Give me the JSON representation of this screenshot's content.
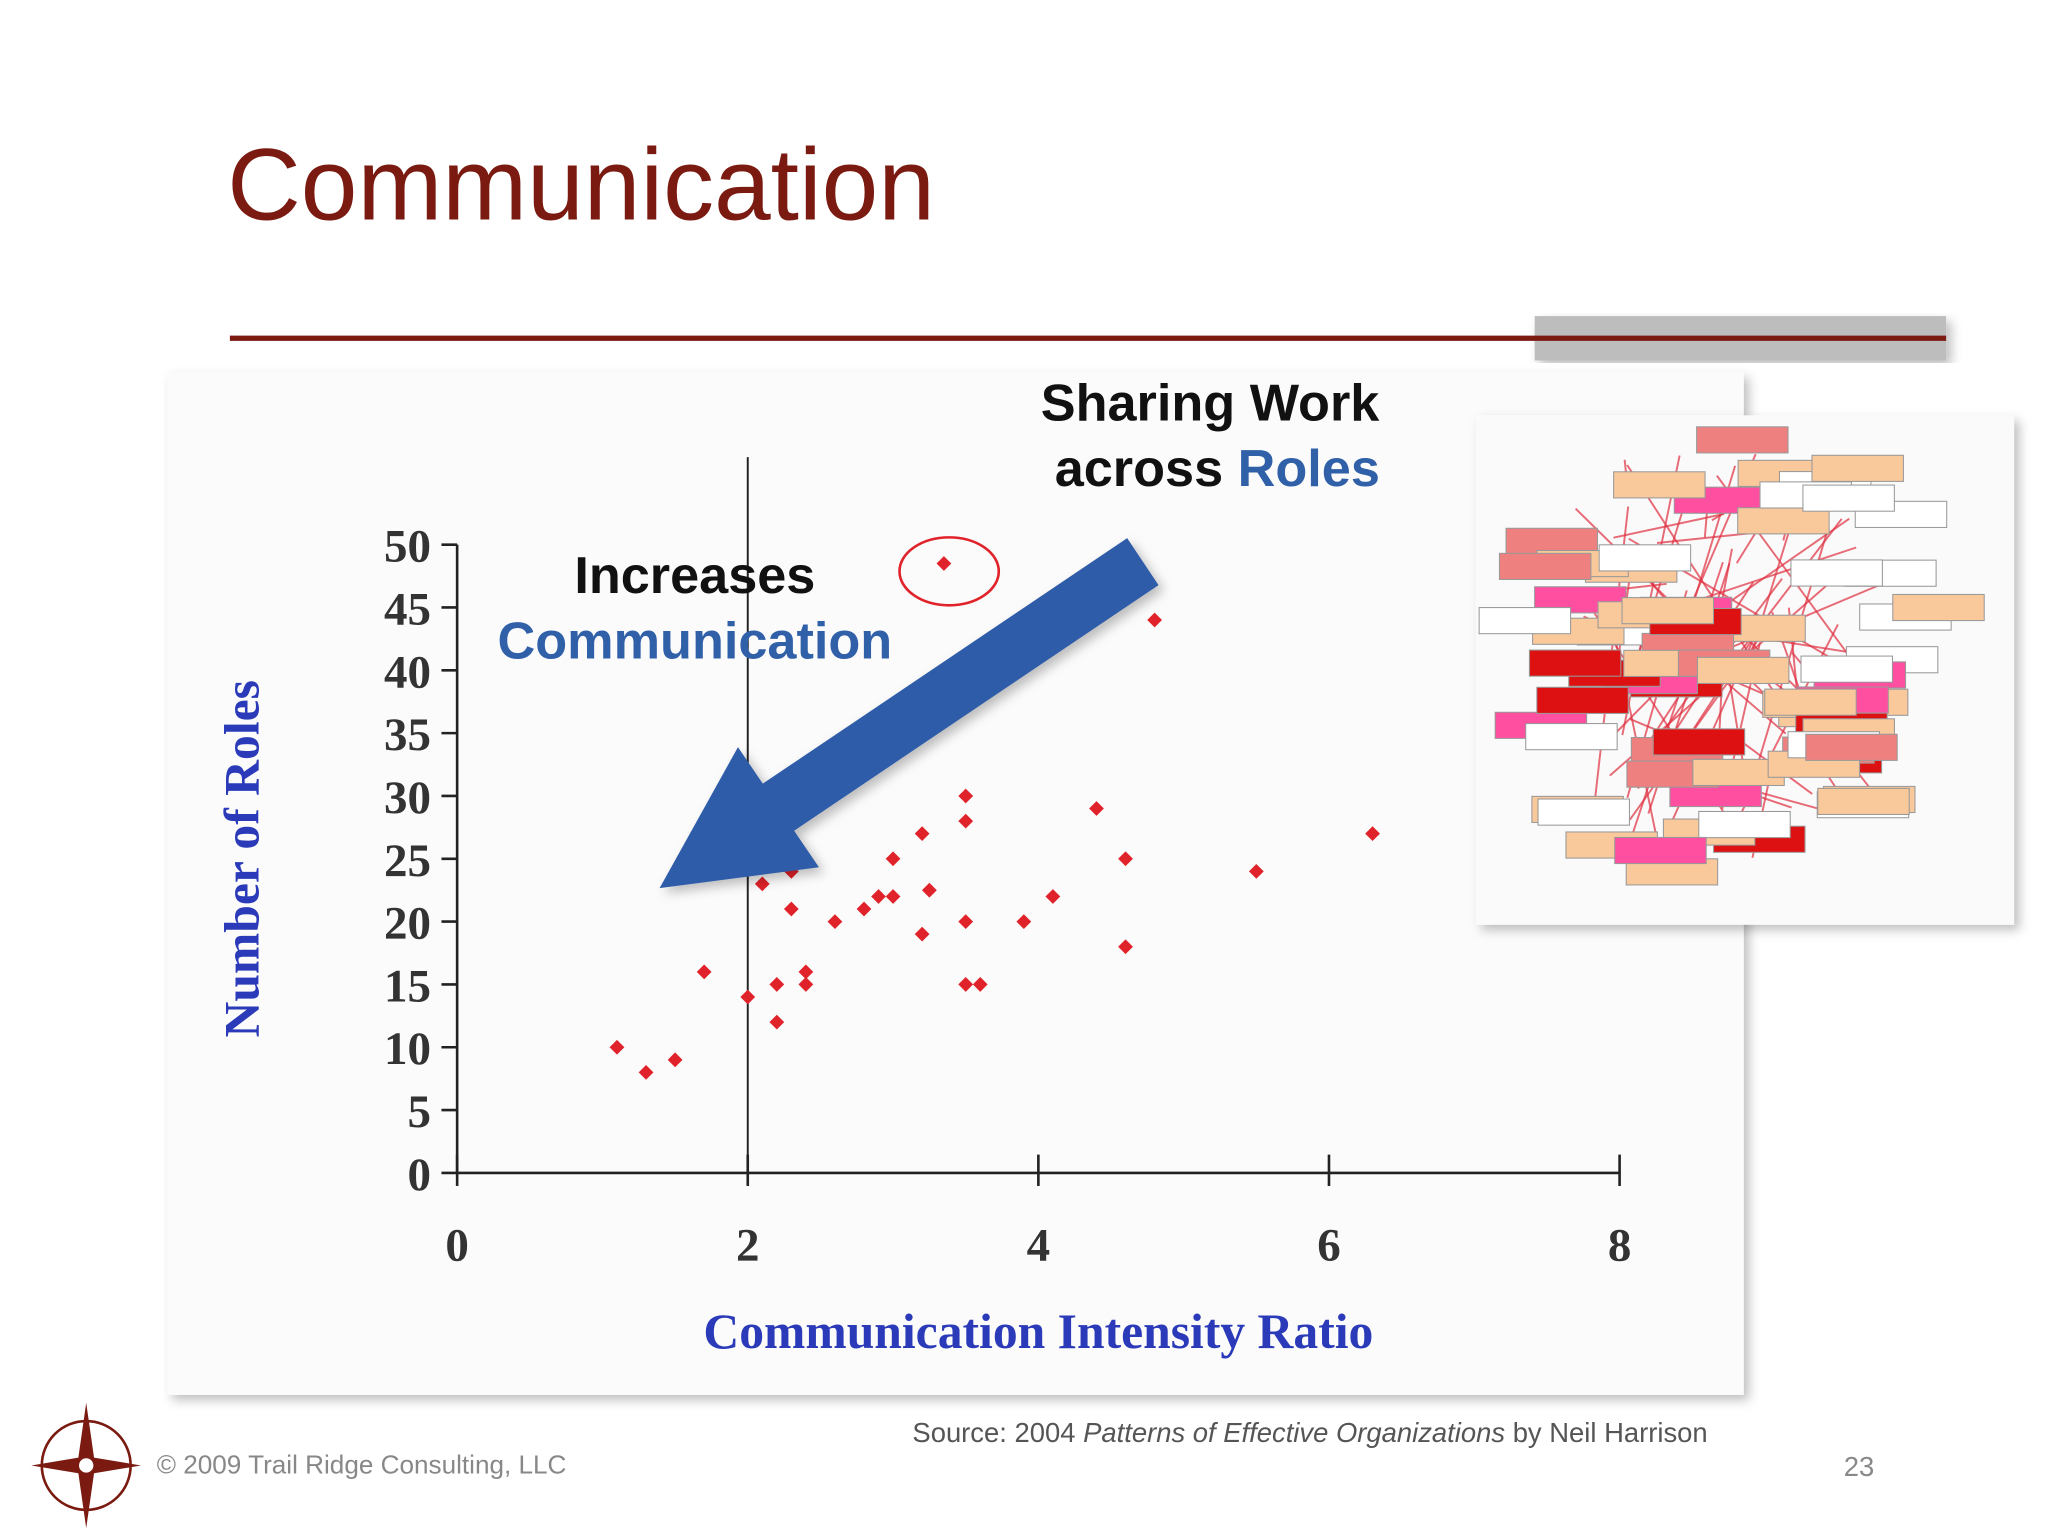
{
  "slide": {
    "title": "Communication",
    "callout": {
      "line1": "Sharing Work",
      "line2_prefix": "across",
      "line2_highlight": "Roles"
    },
    "source": {
      "prefix": "Source: 2004",
      "title": "Patterns of Effective Organizations",
      "suffix": "by Neil Harrison"
    },
    "copyright": "© 2009 Trail Ridge Consulting, LLC",
    "page_number": "23"
  },
  "chart_data": {
    "type": "scatter",
    "xlabel": "Communication Intensity Ratio",
    "ylabel": "Number of Roles",
    "annotation": [
      "Increases",
      "Communication"
    ],
    "color": "#e0232a",
    "xlim": [
      0,
      8
    ],
    "ylim": [
      0,
      50
    ],
    "xticks": [
      0,
      2,
      4,
      6,
      8
    ],
    "yticks": [
      0,
      5,
      10,
      15,
      20,
      25,
      30,
      35,
      40,
      45,
      50
    ],
    "x": [
      1.1,
      1.3,
      1.5,
      1.7,
      2.0,
      2.1,
      2.2,
      2.2,
      2.3,
      2.3,
      2.4,
      2.4,
      2.6,
      2.8,
      2.9,
      3.0,
      3.0,
      3.2,
      3.2,
      3.25,
      3.35,
      3.5,
      3.5,
      3.5,
      3.5,
      3.6,
      3.9,
      4.1,
      4.4,
      4.6,
      4.6,
      4.8,
      5.5,
      6.3
    ],
    "y": [
      10,
      8,
      9,
      16,
      14,
      23,
      15,
      12,
      24,
      21,
      16,
      15,
      20,
      21,
      22,
      22,
      25,
      27,
      19,
      22.5,
      48.5,
      30,
      28,
      20,
      15,
      15,
      20,
      22,
      29,
      25,
      18,
      44,
      24,
      27
    ]
  }
}
